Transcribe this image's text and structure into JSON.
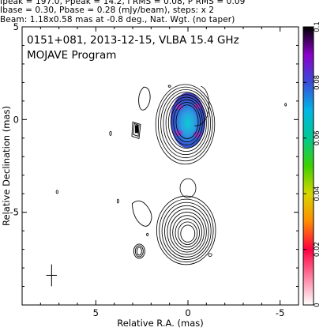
{
  "header": {
    "line1": "Ipeak = 197.0, Ppeak = 14.2, I RMS = 0.08, P RMS = 0.09",
    "line2": "Ibase = 0.30, Pbase = 0.28 (mJy/beam), steps: x 2",
    "line3": "Beam: 1.18x0.58 mas at -0.8 deg., Nat. Wgt. (no taper)"
  },
  "annotations": {
    "source_line": "0151+081, 2013-12-15, VLBA 15.4 GHz",
    "program_line": "MOJAVE Program"
  },
  "chart_data": {
    "type": "heatmap",
    "xlabel": "Relative R.A. (mas)",
    "ylabel": "Relative Declination (mas)",
    "xlim": [
      9,
      -6
    ],
    "ylim": [
      -10,
      5
    ],
    "x_ticks": [
      5,
      0,
      -5
    ],
    "y_ticks": [
      5,
      0,
      -5
    ],
    "x_tick_labels": [
      "5",
      "0",
      "-5"
    ],
    "y_tick_labels": [
      "5",
      "0",
      "-5"
    ],
    "colorbar": {
      "min": 0,
      "max": 0.1,
      "ticks": [
        0.1,
        0.08,
        0.06,
        0.04,
        0.02,
        0
      ],
      "tick_labels": [
        "0.1",
        "0.08",
        "0.06",
        "0.04",
        "0.02",
        "0"
      ],
      "colors": [
        "#000000",
        "#8b00c8",
        "#3a4dd8",
        "#00b6e6",
        "#00c890",
        "#3ed000",
        "#d6d600",
        "#ff8c00",
        "#ff0040",
        "#ff80a0",
        "#ffffff"
      ]
    },
    "components": [
      {
        "name": "core",
        "ra": 0.0,
        "dec": 0.0,
        "contour_levels": 9,
        "polarized": true
      },
      {
        "name": "lower",
        "ra": 0.0,
        "dec": -6.0,
        "contour_levels": 10,
        "polarized": false
      },
      {
        "name": "blob_a",
        "ra": 2.4,
        "dec": 1.2,
        "contour_levels": 1,
        "polarized": false
      },
      {
        "name": "blob_b",
        "ra": 2.7,
        "dec": -0.6,
        "contour_levels": 2,
        "polarized": false
      },
      {
        "name": "blob_c",
        "ra": 2.6,
        "dec": -5.6,
        "contour_levels": 1,
        "polarized": false
      },
      {
        "name": "blob_d",
        "ra": 2.6,
        "dec": -7.1,
        "contour_levels": 3,
        "polarized": false
      }
    ],
    "beam": {
      "major_mas": 1.18,
      "minor_mas": 0.58,
      "pa_deg": -0.8
    }
  }
}
